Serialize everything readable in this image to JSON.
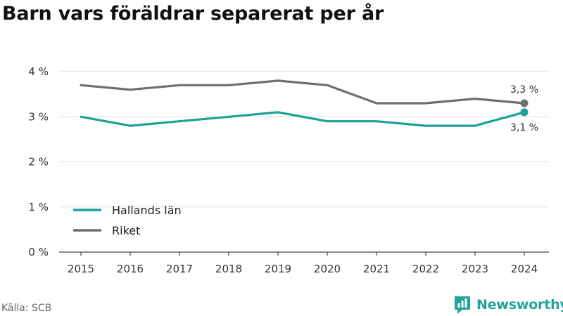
{
  "title": "Barn vars föräldrar separerat per år",
  "source": "Källa: SCB",
  "brand": {
    "name": "Newsworthy",
    "color": "#23a497",
    "icon": "newsworthy-logo-icon"
  },
  "colors": {
    "grid": "#dddddd",
    "axis": "#444444"
  },
  "chart_data": {
    "type": "line",
    "x": [
      "2015",
      "2016",
      "2017",
      "2018",
      "2019",
      "2020",
      "2021",
      "2022",
      "2023",
      "2024"
    ],
    "series": [
      {
        "name": "Hallands län",
        "color": "#1aa394",
        "values": [
          3.0,
          2.8,
          2.9,
          3.0,
          3.1,
          2.9,
          2.9,
          2.8,
          2.8,
          3.1
        ],
        "end_label": "3,1 %"
      },
      {
        "name": "Riket",
        "color": "#6f6e74",
        "values": [
          3.7,
          3.6,
          3.7,
          3.7,
          3.8,
          3.7,
          3.3,
          3.3,
          3.4,
          3.3
        ],
        "end_label": "3,3 %"
      }
    ],
    "yticks": [
      0,
      1,
      2,
      3,
      4
    ],
    "ytick_labels": [
      "0 %",
      "1 %",
      "2 %",
      "3 %",
      "4 %"
    ],
    "ylim": [
      0,
      4
    ],
    "grid": true,
    "legend": "bottom-left"
  }
}
